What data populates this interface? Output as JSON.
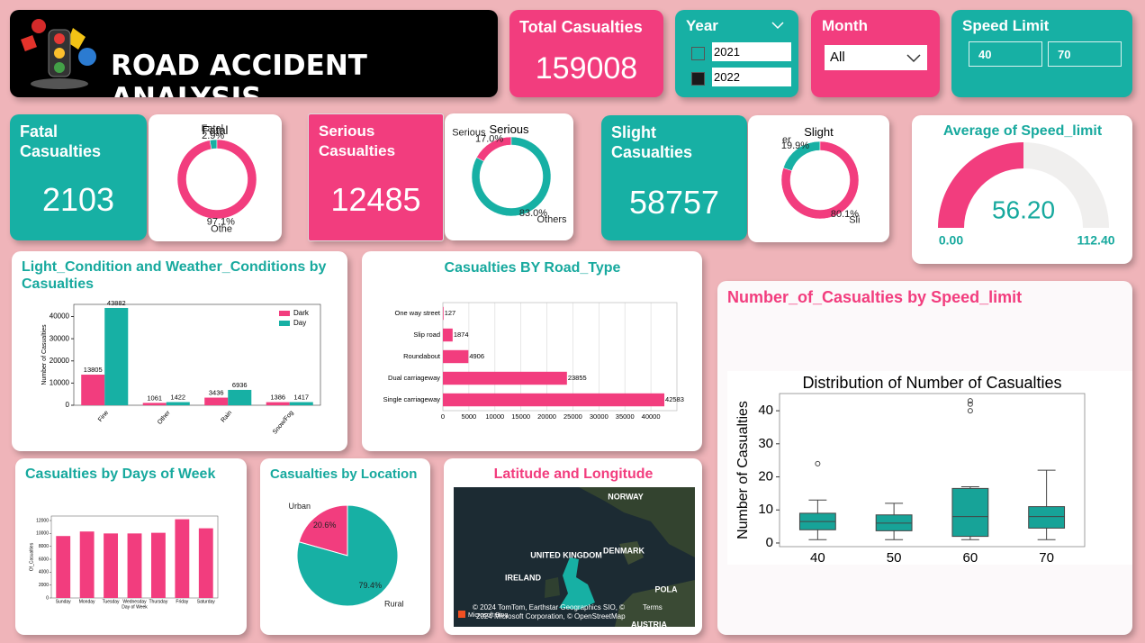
{
  "header": {
    "title": "ROAD ACCIDENT ANALYSIS"
  },
  "kpis": {
    "total": {
      "label": "Total Casualties",
      "value": 159008
    },
    "fatal": {
      "label": "Fatal Casualties",
      "value": 2103
    },
    "serious": {
      "label": "Serious Casualties",
      "value": 12485
    },
    "slight": {
      "label": "Slight Casualties",
      "value": 58757
    }
  },
  "slicers": {
    "year": {
      "title": "Year",
      "options": [
        {
          "label": "2021",
          "selected": false
        },
        {
          "label": "2022",
          "selected": true
        }
      ]
    },
    "month": {
      "title": "Month",
      "value": "All"
    },
    "speed_limit": {
      "title": "Speed Limit",
      "from": "40",
      "to": "70"
    }
  },
  "chart_data": [
    {
      "type": "donut",
      "title": "Fatal",
      "categories": [
        "Fatal",
        "Othe"
      ],
      "values": [
        2.9,
        97.1
      ],
      "value_labels": [
        "2.9%",
        "97.1%"
      ],
      "colors": [
        "#17b0a4",
        "#f23d7e"
      ]
    },
    {
      "type": "donut",
      "title": "Serious",
      "categories": [
        "Serious",
        "Others"
      ],
      "values": [
        17.0,
        83.0
      ],
      "value_labels": [
        "17.0%",
        "83.0%"
      ],
      "colors": [
        "#f23d7e",
        "#17b0a4"
      ]
    },
    {
      "type": "donut",
      "title": "Slight",
      "categories": [
        "er",
        "Sli"
      ],
      "values": [
        19.9,
        80.1
      ],
      "value_labels": [
        "19.9%",
        "80.1%"
      ],
      "colors": [
        "#17b0a4",
        "#f23d7e"
      ]
    },
    {
      "type": "gauge",
      "title": "Average of Speed_limit",
      "value": 56.2,
      "value_label": "56.20",
      "min": {
        "value": 0,
        "label": "0.00"
      },
      "max": {
        "value": 112.4,
        "label": "112.40"
      },
      "color": "#f23d7e",
      "track_color": "#f0efee"
    },
    {
      "type": "grouped_bar",
      "title": "Light_Condition and Weather_Conditions by Casualties",
      "ylabel": "Number of Casualties",
      "categories": [
        "Fine",
        "Other",
        "Rain",
        "Snow/Fog"
      ],
      "series": [
        {
          "name": "Dark",
          "color": "#f23d7e",
          "values": [
            13805,
            1061,
            3436,
            1386
          ]
        },
        {
          "name": "Day",
          "color": "#17b0a4",
          "values": [
            43882,
            1422,
            6936,
            1417
          ]
        }
      ],
      "ylim": [
        0,
        45500
      ],
      "yticks": [
        0,
        10000,
        20000,
        30000,
        40000
      ],
      "legend": "upper right",
      "grid": false
    },
    {
      "type": "hbar",
      "title": "Casualties BY Road_Type",
      "categories": [
        "One way street",
        "Slip road",
        "Roundabout",
        "Dual carriageway",
        "Single carriageway"
      ],
      "values": [
        127,
        1874,
        4906,
        23855,
        42583
      ],
      "color": "#f23d7e",
      "xlim": [
        0,
        45000
      ],
      "xticks": [
        0,
        5000,
        10000,
        15000,
        20000,
        25000,
        30000,
        35000,
        40000
      ],
      "grid": true
    },
    {
      "type": "box",
      "title": "Number_of_Casualties by Speed_limit",
      "plot_title": "Distribution of Number of Casualties",
      "ylabel": "Number of Casualties",
      "categories": [
        "40",
        "50",
        "60",
        "70"
      ],
      "color": "#17a398",
      "boxes": [
        {
          "whislo": 1,
          "q1": 4,
          "med": 6.5,
          "q3": 9,
          "whishi": 13,
          "fliers": [
            24
          ]
        },
        {
          "whislo": 1,
          "q1": 3.7,
          "med": 6,
          "q3": 8.5,
          "whishi": 12,
          "fliers": []
        },
        {
          "whislo": 1,
          "q1": 2,
          "med": 8,
          "q3": 16.5,
          "whishi": 17,
          "fliers": [
            40,
            42,
            43
          ]
        },
        {
          "whislo": 1,
          "q1": 4.5,
          "med": 8,
          "q3": 11,
          "whishi": 22,
          "fliers": []
        }
      ],
      "ylim": [
        -1.1,
        45.2
      ],
      "yticks": [
        0,
        10,
        20,
        30,
        40
      ],
      "grid": false
    },
    {
      "type": "bar",
      "title": "Casualties by Days of Week",
      "ylabel": "Of_Casualties",
      "xlabel": "Day of Week",
      "categories": [
        "Sunday",
        "Monday",
        "Tuesday",
        "Wednesday",
        "Thursday",
        "Friday",
        "Saturday"
      ],
      "values": [
        9600,
        10300,
        10000,
        10000,
        10100,
        12200,
        10800
      ],
      "color": "#f23d7e",
      "ylim": [
        0,
        12700
      ],
      "yticks": [
        0,
        2000,
        4000,
        6000,
        8000,
        10000,
        12000
      ],
      "grid": false
    },
    {
      "type": "pie",
      "title": "Casualties by Location",
      "categories": [
        "Urban",
        "Rural"
      ],
      "values": [
        20.6,
        79.4
      ],
      "value_labels": [
        "20.6%",
        "79.4%"
      ],
      "colors": [
        "#f23d7e",
        "#17b0a4"
      ]
    }
  ],
  "map": {
    "title": "Latitude and Longitude",
    "labels": [
      "NORWAY",
      "DENMARK",
      "UNITED KINGDOM",
      "IRELAND",
      "POLA",
      "AUSTRIA"
    ],
    "attribution": [
      "© 2024 TomTom, Earthstar Geographics SIO, ©",
      "Terms",
      "2024 Microsoft Corporation, © OpenStreetMap"
    ],
    "brand": "Microsoft Bing"
  }
}
